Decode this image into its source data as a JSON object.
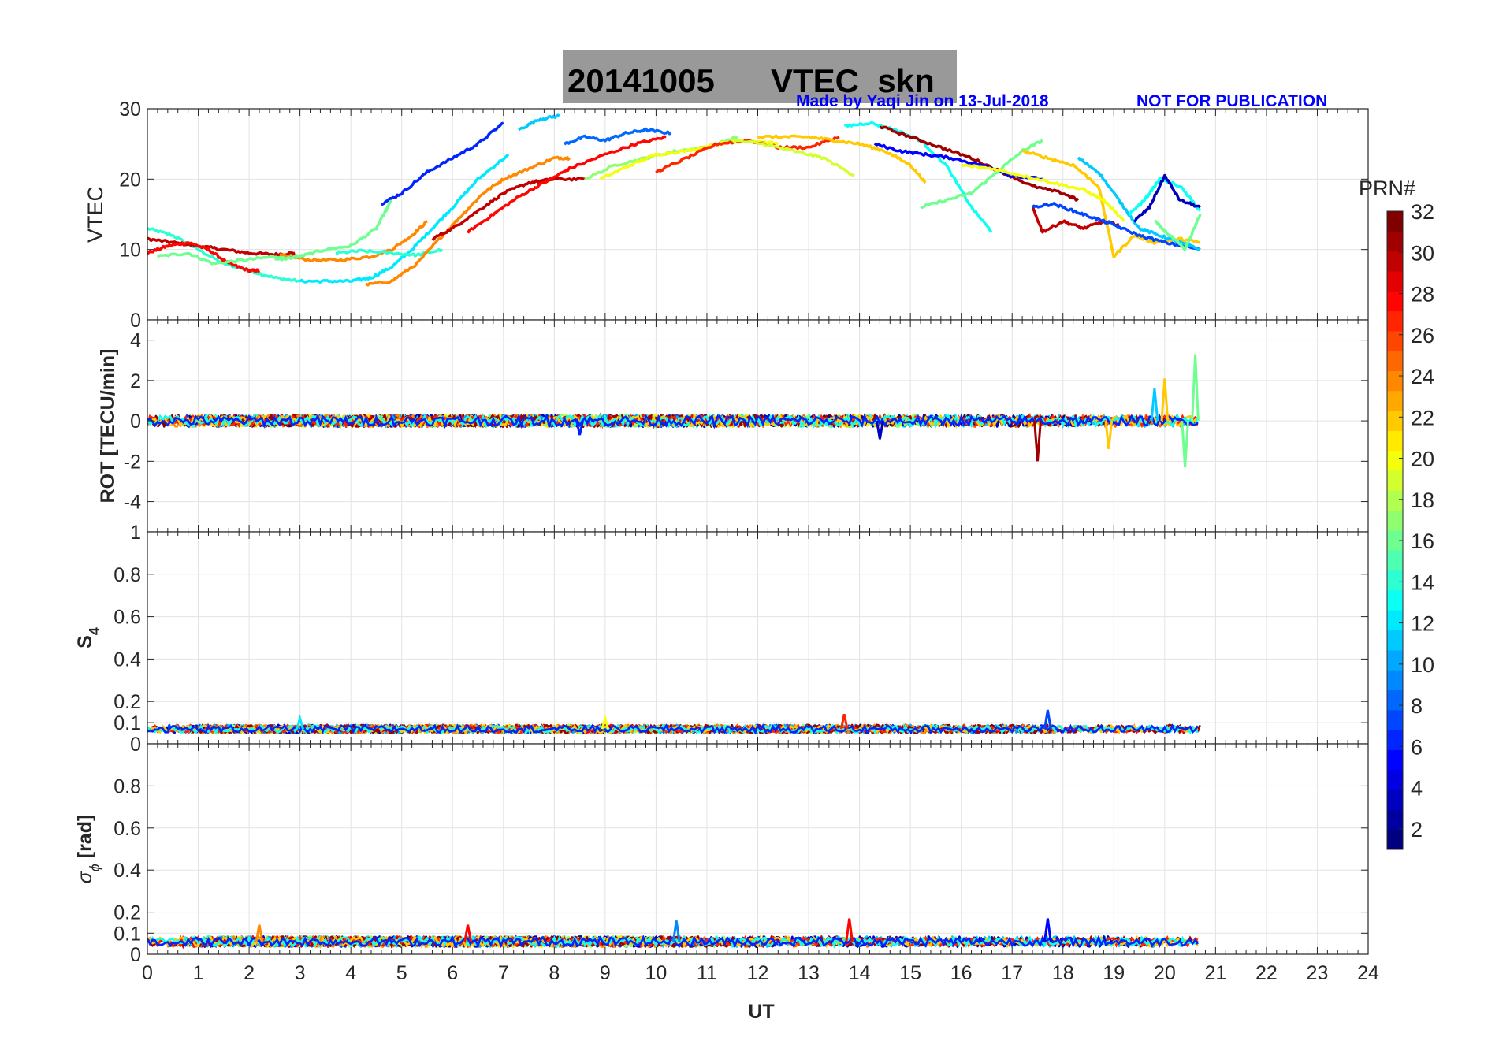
{
  "title": {
    "date": "20141005",
    "text": "VTEC  skn",
    "box_color": "#999999"
  },
  "credit": {
    "made_by": "Made by Yaqi Jin on 13-Jul-2018",
    "notice": "NOT FOR PUBLICATION",
    "color": "#0000ff"
  },
  "colorbar": {
    "title": "PRN#",
    "range": [
      1,
      32
    ],
    "ticks": [
      "2",
      "4",
      "6",
      "8",
      "10",
      "12",
      "14",
      "16",
      "18",
      "20",
      "22",
      "24",
      "26",
      "28",
      "30",
      "32"
    ],
    "colormap": "jet"
  },
  "chart_data": [
    {
      "type": "line",
      "panel": "VTEC",
      "ylabel": "VTEC",
      "ylim": [
        0,
        30
      ],
      "yticks": [
        0,
        10,
        20,
        30
      ],
      "xlim": [
        0,
        24
      ],
      "grid": true,
      "series": [
        {
          "prn": 14,
          "x": [
            0.0,
            0.5,
            1.0,
            1.5,
            2.0,
            2.5,
            3.0
          ],
          "y": [
            13,
            12,
            10,
            8,
            7,
            6,
            5.5
          ]
        },
        {
          "prn": 30,
          "x": [
            0.0,
            0.5,
            1.0,
            1.5,
            2.0,
            2.5,
            2.9
          ],
          "y": [
            11.5,
            11,
            10.5,
            10,
            9.5,
            9.3,
            9.5
          ]
        },
        {
          "prn": 28,
          "x": [
            0.0,
            0.4,
            0.8,
            1.2,
            1.6,
            2.0,
            2.2
          ],
          "y": [
            9.5,
            10.5,
            11,
            10,
            8,
            7,
            7
          ]
        },
        {
          "prn": 16,
          "x": [
            0.2,
            0.8,
            1.3,
            1.9,
            2.5,
            3.0
          ],
          "y": [
            9,
            9.5,
            8,
            8.5,
            9,
            9
          ]
        },
        {
          "prn": 24,
          "x": [
            2.6,
            3.2,
            3.8,
            4.4,
            4.8,
            5.2,
            5.5
          ],
          "y": [
            9.2,
            8.5,
            8.5,
            9,
            10,
            12,
            14
          ]
        },
        {
          "prn": 12,
          "x": [
            3.0,
            3.5,
            4.0,
            4.4,
            4.8,
            5.2,
            5.6,
            6.0,
            6.5,
            7.1
          ],
          "y": [
            5.5,
            5.5,
            5.5,
            6,
            7.5,
            10,
            13,
            16,
            20,
            23.5
          ]
        },
        {
          "prn": 16,
          "x": [
            2.5,
            3.0,
            3.5,
            4.0,
            4.5,
            4.8
          ],
          "y": [
            8.5,
            9,
            10,
            10.5,
            13,
            17
          ]
        },
        {
          "prn": 14,
          "x": [
            3.7,
            4.2,
            4.8,
            5.3,
            5.8
          ],
          "y": [
            9.5,
            9.8,
            9.5,
            9.2,
            10
          ]
        },
        {
          "prn": 24,
          "x": [
            4.3,
            4.8,
            5.3,
            5.8,
            6.2,
            6.6,
            7.0,
            7.5,
            8.0,
            8.3
          ],
          "y": [
            5,
            5.5,
            8,
            12,
            15,
            18,
            20,
            21.5,
            23,
            23
          ]
        },
        {
          "prn": 6,
          "x": [
            4.6,
            5.0,
            5.5,
            6.0,
            6.5,
            7.0
          ],
          "y": [
            16.5,
            18,
            21,
            23,
            25,
            28
          ]
        },
        {
          "prn": 30,
          "x": [
            5.6,
            6.0,
            6.5,
            7.0,
            7.5,
            8.0,
            8.6
          ],
          "y": [
            11.5,
            13,
            15.5,
            18,
            19.5,
            20,
            20
          ]
        },
        {
          "prn": 28,
          "x": [
            6.3,
            6.8,
            7.3,
            7.8,
            8.3,
            9.0,
            9.6,
            10.2
          ],
          "y": [
            12.5,
            15,
            17.5,
            19.5,
            21.5,
            23.5,
            25,
            26
          ]
        },
        {
          "prn": 11,
          "x": [
            7.3,
            7.7,
            8.1
          ],
          "y": [
            27,
            28.5,
            29
          ]
        },
        {
          "prn": 8,
          "x": [
            8.2,
            8.6,
            9.0,
            9.4,
            9.8,
            10.3
          ],
          "y": [
            25,
            26,
            25.5,
            26.5,
            27,
            26.5
          ]
        },
        {
          "prn": 17,
          "x": [
            8.6,
            9.2,
            9.8,
            10.4,
            11.0,
            11.6
          ],
          "y": [
            20,
            22,
            23,
            24,
            24.5,
            26
          ]
        },
        {
          "prn": 20,
          "x": [
            8.9,
            9.5,
            10.0,
            10.6,
            11.2,
            11.8,
            12.4
          ],
          "y": [
            20,
            22,
            23.5,
            24,
            25,
            25.5,
            25
          ]
        },
        {
          "prn": 27,
          "x": [
            10.0,
            10.6,
            11.2,
            11.8,
            12.4,
            13.0,
            13.6
          ],
          "y": [
            21,
            23,
            25,
            25.5,
            24.5,
            24.5,
            26
          ]
        },
        {
          "prn": 19,
          "x": [
            11.5,
            12.1,
            12.7,
            13.3,
            13.9
          ],
          "y": [
            25.5,
            25,
            24,
            23,
            20.5
          ]
        },
        {
          "prn": 22,
          "x": [
            12.0,
            12.5,
            13.0,
            13.5,
            14.0,
            14.5,
            15.0,
            15.3
          ],
          "y": [
            26,
            26,
            26,
            25.5,
            25,
            24,
            22,
            19.5
          ]
        },
        {
          "prn": 13,
          "x": [
            13.7,
            14.2,
            14.7,
            15.2,
            15.7,
            16.2,
            16.6
          ],
          "y": [
            27.5,
            28,
            27,
            25.5,
            22,
            16,
            12.5
          ]
        },
        {
          "prn": 31,
          "x": [
            14.4,
            15.0,
            15.6,
            16.2,
            16.8,
            17.4,
            18.0,
            18.3
          ],
          "y": [
            27.5,
            26,
            24.5,
            23,
            21,
            19,
            18,
            17
          ]
        },
        {
          "prn": 5,
          "x": [
            14.3,
            14.8,
            15.3,
            15.8,
            16.4,
            17.0,
            17.6
          ],
          "y": [
            25,
            24,
            23.5,
            23,
            22,
            20.5,
            20
          ]
        },
        {
          "prn": 16,
          "x": [
            15.2,
            15.7,
            16.2,
            16.7,
            17.2,
            17.6
          ],
          "y": [
            16,
            17,
            18,
            21,
            24,
            25.5
          ]
        },
        {
          "prn": 22,
          "x": [
            17.2,
            17.7,
            18.2,
            18.7,
            19.0,
            19.4,
            19.8,
            20.3,
            20.7
          ],
          "y": [
            24,
            23,
            22,
            19,
            9,
            12,
            11,
            11.5,
            11
          ]
        },
        {
          "prn": 20,
          "x": [
            16.0,
            16.6,
            17.2,
            17.8,
            18.4,
            18.8,
            19.2
          ],
          "y": [
            22,
            21.5,
            20.5,
            19.5,
            18.5,
            17,
            14
          ]
        },
        {
          "prn": 30,
          "x": [
            17.4,
            17.6,
            18.0,
            18.4,
            18.8,
            19.1
          ],
          "y": [
            16,
            12.5,
            14,
            13,
            14,
            13.5
          ]
        },
        {
          "prn": 7,
          "x": [
            17.4,
            17.8,
            18.2,
            18.6,
            19.0,
            19.5,
            20.0,
            20.7
          ],
          "y": [
            16,
            16.5,
            15.5,
            14.5,
            13.5,
            12,
            11,
            10
          ]
        },
        {
          "prn": 11,
          "x": [
            18.3,
            18.7,
            19.1,
            19.5,
            19.9,
            20.3,
            20.7
          ],
          "y": [
            23,
            21,
            17,
            13,
            12,
            11,
            10
          ]
        },
        {
          "prn": 13,
          "x": [
            19.3,
            19.6,
            19.9,
            20.3,
            20.7
          ],
          "y": [
            15,
            17,
            20,
            19,
            15.5
          ]
        },
        {
          "prn": 3,
          "x": [
            19.4,
            19.7,
            20.0,
            20.3,
            20.7
          ],
          "y": [
            14,
            16,
            20.5,
            17,
            16
          ]
        },
        {
          "prn": 16,
          "x": [
            19.8,
            20.1,
            20.4,
            20.7
          ],
          "y": [
            14,
            12,
            10,
            15
          ]
        }
      ]
    },
    {
      "type": "line",
      "panel": "ROT",
      "ylabel": "ROT [TECU/min]",
      "ylim": [
        -5.5,
        5
      ],
      "yticks": [
        -4,
        -2,
        0,
        2,
        4
      ],
      "xlim": [
        0,
        24
      ],
      "grid": true,
      "noise_band": {
        "x_start": 0,
        "x_end": 20.7,
        "amplitude": 0.3
      },
      "spikes": [
        {
          "x": 17.5,
          "y": -2.0,
          "prn": 31
        },
        {
          "x": 18.9,
          "y": -1.4,
          "prn": 22
        },
        {
          "x": 19.8,
          "y": 1.6,
          "prn": 11
        },
        {
          "x": 20.0,
          "y": 2.1,
          "prn": 22
        },
        {
          "x": 20.4,
          "y": -2.3,
          "prn": 16
        },
        {
          "x": 20.6,
          "y": 3.3,
          "prn": 16
        },
        {
          "x": 8.5,
          "y": -0.7,
          "prn": 6
        },
        {
          "x": 14.4,
          "y": -0.9,
          "prn": 3
        }
      ]
    },
    {
      "type": "line",
      "panel": "S4",
      "ylabel": "S4",
      "ylim": [
        0,
        1
      ],
      "yticks": [
        0,
        0.1,
        0.2,
        0.4,
        0.6,
        0.8,
        1
      ],
      "xlim": [
        0,
        24
      ],
      "grid": true,
      "baseline": 0.07,
      "noise_band": {
        "x_start": 0,
        "x_end": 20.7,
        "amplitude": 0.02
      },
      "spikes": [
        {
          "x": 17.7,
          "y": 0.16,
          "prn": 7
        },
        {
          "x": 13.7,
          "y": 0.14,
          "prn": 27
        },
        {
          "x": 9.0,
          "y": 0.12,
          "prn": 20
        },
        {
          "x": 3.0,
          "y": 0.12,
          "prn": 12
        }
      ]
    },
    {
      "type": "line",
      "panel": "sigma_phi",
      "ylabel": "σϕ [rad]",
      "ylim": [
        0,
        1
      ],
      "yticks": [
        0,
        0.1,
        0.2,
        0.4,
        0.6,
        0.8
      ],
      "xlim": [
        0,
        24
      ],
      "grid": true,
      "baseline": 0.06,
      "noise_band": {
        "x_start": 0,
        "x_end": 20.7,
        "amplitude": 0.025
      },
      "spikes": [
        {
          "x": 10.4,
          "y": 0.16,
          "prn": 9
        },
        {
          "x": 13.8,
          "y": 0.17,
          "prn": 28
        },
        {
          "x": 17.7,
          "y": 0.17,
          "prn": 5
        },
        {
          "x": 2.2,
          "y": 0.14,
          "prn": 24
        },
        {
          "x": 6.3,
          "y": 0.14,
          "prn": 28
        }
      ]
    }
  ],
  "xaxis": {
    "label": "UT",
    "ticks": [
      "0",
      "1",
      "2",
      "3",
      "4",
      "5",
      "6",
      "7",
      "8",
      "9",
      "10",
      "11",
      "12",
      "13",
      "14",
      "15",
      "16",
      "17",
      "18",
      "19",
      "20",
      "21",
      "22",
      "23",
      "24"
    ]
  }
}
